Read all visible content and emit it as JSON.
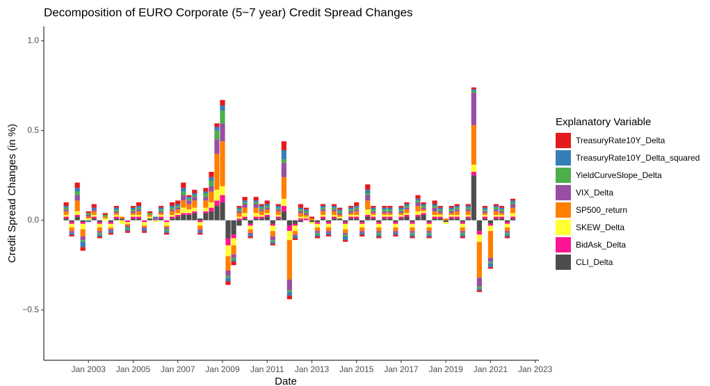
{
  "chart_data": {
    "type": "stacked_bar",
    "title": "Decomposition of EURO Corporate (5−7 year) Credit Spread Changes",
    "x_label": "Date",
    "y_label": "Credit Spread Changes (in %)",
    "legend_title": "Explanatory Variable",
    "legend": "right",
    "xlim": [
      "2001-01",
      "2023-03"
    ],
    "ylim": [
      -0.78,
      1.08
    ],
    "xticks": [
      {
        "value": "2003-01",
        "label": "Jan 2003"
      },
      {
        "value": "2005-01",
        "label": "Jan 2005"
      },
      {
        "value": "2007-01",
        "label": "Jan 2007"
      },
      {
        "value": "2009-01",
        "label": "Jan 2009"
      },
      {
        "value": "2011-01",
        "label": "Jan 2011"
      },
      {
        "value": "2013-01",
        "label": "Jan 2013"
      },
      {
        "value": "2015-01",
        "label": "Jan 2015"
      },
      {
        "value": "2017-01",
        "label": "Jan 2017"
      },
      {
        "value": "2019-01",
        "label": "Jan 2019"
      },
      {
        "value": "2021-01",
        "label": "Jan 2021"
      },
      {
        "value": "2023-01",
        "label": "Jan 2023"
      }
    ],
    "yticks": [
      {
        "value": -0.5,
        "label": "−0.5"
      },
      {
        "value": 0,
        "label": "0.0"
      },
      {
        "value": 0.5,
        "label": "0.5"
      },
      {
        "value": 1,
        "label": "1.0"
      }
    ],
    "x": [
      "2002-01",
      "2002-04",
      "2002-07",
      "2002-10",
      "2003-01",
      "2003-04",
      "2003-07",
      "2003-10",
      "2004-01",
      "2004-04",
      "2004-07",
      "2004-10",
      "2005-01",
      "2005-04",
      "2005-07",
      "2005-10",
      "2006-01",
      "2006-04",
      "2006-07",
      "2006-10",
      "2007-01",
      "2007-04",
      "2007-07",
      "2007-10",
      "2008-01",
      "2008-04",
      "2008-07",
      "2008-10",
      "2009-01",
      "2009-04",
      "2009-07",
      "2009-10",
      "2010-01",
      "2010-04",
      "2010-07",
      "2010-10",
      "2011-01",
      "2011-04",
      "2011-07",
      "2011-10",
      "2012-01",
      "2012-04",
      "2012-07",
      "2012-10",
      "2013-01",
      "2013-04",
      "2013-07",
      "2013-10",
      "2014-01",
      "2014-04",
      "2014-07",
      "2014-10",
      "2015-01",
      "2015-04",
      "2015-07",
      "2015-10",
      "2016-01",
      "2016-04",
      "2016-07",
      "2016-10",
      "2017-01",
      "2017-04",
      "2017-07",
      "2017-10",
      "2018-01",
      "2018-04",
      "2018-07",
      "2018-10",
      "2019-01",
      "2019-04",
      "2019-07",
      "2019-10",
      "2020-01",
      "2020-04",
      "2020-07",
      "2020-10",
      "2021-01",
      "2021-04",
      "2021-07",
      "2021-10",
      "2022-01"
    ],
    "series": [
      {
        "name": "TreasuryRate10Y_Delta",
        "color": "#E41A1C",
        "values": [
          0.02,
          -0.01,
          0.03,
          -0.02,
          0.01,
          0.02,
          -0.01,
          0.01,
          -0.01,
          0.01,
          0.0,
          -0.01,
          0.01,
          0.02,
          -0.01,
          0.01,
          0.0,
          0.01,
          -0.01,
          0.02,
          0.02,
          0.03,
          0.01,
          0.02,
          -0.01,
          0.02,
          0.03,
          0.02,
          0.03,
          -0.02,
          -0.02,
          0.01,
          0.02,
          -0.01,
          0.02,
          0.01,
          0.02,
          -0.01,
          0.01,
          0.05,
          -0.02,
          -0.01,
          0.02,
          0.01,
          0.01,
          -0.01,
          0.01,
          -0.01,
          0.01,
          0.01,
          -0.01,
          0.01,
          0.02,
          -0.01,
          0.03,
          0.01,
          -0.01,
          0.01,
          0.01,
          -0.01,
          0.01,
          0.01,
          -0.01,
          0.02,
          0.01,
          -0.01,
          0.02,
          0.01,
          0.0,
          0.01,
          0.01,
          -0.01,
          0.01,
          0.01,
          -0.01,
          0.01,
          -0.01,
          0.01,
          0.01,
          -0.01,
          0.01
        ]
      },
      {
        "name": "TreasuryRate10Y_Delta_squared",
        "color": "#377EB8",
        "values": [
          0.01,
          -0.01,
          0.02,
          -0.03,
          -0.01,
          0.01,
          -0.01,
          0.0,
          -0.01,
          0.01,
          0.0,
          -0.01,
          0.01,
          0.01,
          -0.01,
          0.0,
          0.01,
          0.01,
          -0.01,
          0.01,
          0.01,
          0.02,
          0.01,
          0.01,
          -0.01,
          0.01,
          0.02,
          0.02,
          0.03,
          -0.02,
          -0.01,
          0.01,
          0.01,
          -0.01,
          0.01,
          0.01,
          0.01,
          -0.01,
          0.01,
          0.05,
          -0.02,
          -0.01,
          0.01,
          0.01,
          0.0,
          -0.01,
          0.01,
          -0.01,
          0.01,
          0.01,
          -0.02,
          0.01,
          0.01,
          -0.01,
          0.02,
          0.01,
          -0.01,
          0.01,
          0.01,
          -0.01,
          0.01,
          0.01,
          -0.01,
          0.01,
          0.01,
          -0.01,
          0.01,
          0.01,
          0.0,
          0.01,
          0.01,
          -0.01,
          0.01,
          0.01,
          -0.01,
          0.01,
          -0.02,
          0.01,
          0.01,
          -0.01,
          0.01
        ]
      },
      {
        "name": "YieldCurveSlope_Delta",
        "color": "#4DAF4A",
        "values": [
          0.01,
          0.0,
          0.02,
          -0.01,
          0.01,
          0.0,
          -0.01,
          0.01,
          0.0,
          0.01,
          0.0,
          -0.01,
          0.01,
          0.01,
          0.0,
          0.01,
          0.0,
          0.01,
          -0.01,
          0.01,
          0.01,
          0.02,
          0.01,
          0.01,
          0.0,
          0.02,
          0.03,
          0.05,
          0.07,
          -0.01,
          -0.01,
          0.01,
          0.01,
          0.0,
          0.01,
          0.01,
          0.01,
          -0.01,
          0.01,
          0.02,
          -0.01,
          0.0,
          0.01,
          0.01,
          0.0,
          -0.01,
          0.01,
          0.0,
          0.01,
          0.01,
          -0.01,
          0.01,
          0.01,
          0.0,
          0.01,
          0.01,
          -0.01,
          0.01,
          0.01,
          0.0,
          0.01,
          0.01,
          -0.01,
          0.01,
          0.01,
          -0.01,
          0.01,
          0.01,
          0.0,
          0.01,
          0.01,
          -0.01,
          0.01,
          0.01,
          -0.01,
          0.01,
          -0.01,
          0.01,
          0.01,
          -0.01,
          0.01
        ]
      },
      {
        "name": "VIX_Delta",
        "color": "#984EA3",
        "values": [
          0.01,
          -0.01,
          0.03,
          -0.02,
          0.01,
          0.01,
          -0.01,
          0.0,
          -0.01,
          0.01,
          0.0,
          -0.01,
          0.01,
          0.01,
          -0.01,
          0.0,
          0.01,
          0.01,
          -0.01,
          0.01,
          0.01,
          0.03,
          0.02,
          0.02,
          -0.01,
          0.02,
          0.03,
          0.08,
          0.1,
          -0.03,
          -0.02,
          0.01,
          0.02,
          -0.01,
          0.02,
          0.01,
          0.01,
          -0.02,
          0.01,
          0.08,
          -0.06,
          -0.01,
          0.01,
          0.01,
          0.0,
          -0.01,
          0.01,
          -0.01,
          0.01,
          0.01,
          -0.01,
          0.01,
          0.01,
          -0.01,
          0.03,
          0.01,
          -0.01,
          0.01,
          0.01,
          -0.01,
          0.01,
          0.01,
          -0.01,
          0.02,
          0.01,
          -0.01,
          0.02,
          0.01,
          0.0,
          0.01,
          0.01,
          -0.01,
          0.01,
          0.18,
          -0.05,
          0.01,
          -0.02,
          0.01,
          0.01,
          -0.01,
          0.02
        ]
      },
      {
        "name": "SP500_return",
        "color": "#FF7F00",
        "values": [
          0.02,
          -0.02,
          0.06,
          -0.04,
          0.01,
          0.02,
          -0.02,
          0.01,
          -0.01,
          0.01,
          0.01,
          -0.01,
          0.01,
          0.02,
          -0.01,
          0.01,
          0.0,
          0.01,
          -0.01,
          0.02,
          0.02,
          0.04,
          0.03,
          0.04,
          -0.02,
          0.04,
          0.06,
          0.2,
          0.25,
          -0.08,
          -0.05,
          0.02,
          0.03,
          -0.02,
          0.03,
          0.02,
          0.02,
          -0.03,
          0.02,
          0.12,
          -0.22,
          -0.02,
          0.02,
          0.01,
          0.01,
          -0.02,
          0.02,
          -0.02,
          0.02,
          0.01,
          -0.02,
          0.01,
          0.02,
          -0.02,
          0.05,
          0.01,
          -0.02,
          0.01,
          0.01,
          -0.02,
          0.01,
          0.02,
          -0.02,
          0.03,
          0.01,
          -0.02,
          0.02,
          0.01,
          0.01,
          0.01,
          0.02,
          -0.02,
          0.02,
          0.22,
          -0.2,
          0.01,
          -0.15,
          0.02,
          0.01,
          -0.02,
          0.03
        ]
      },
      {
        "name": "SKEW_Delta",
        "color": "#FFFF33",
        "values": [
          0.01,
          -0.02,
          0.02,
          -0.03,
          0.01,
          0.01,
          -0.02,
          0.01,
          -0.02,
          0.01,
          -0.02,
          -0.01,
          0.01,
          0.01,
          -0.02,
          0.01,
          -0.01,
          0.01,
          -0.02,
          0.01,
          0.01,
          0.03,
          0.02,
          0.02,
          -0.02,
          0.02,
          0.03,
          0.06,
          0.05,
          -0.06,
          -0.04,
          0.01,
          0.02,
          -0.02,
          0.02,
          0.01,
          0.01,
          -0.03,
          0.01,
          0.04,
          -0.05,
          -0.03,
          0.01,
          0.01,
          -0.01,
          -0.02,
          0.01,
          -0.02,
          0.01,
          0.01,
          -0.03,
          0.01,
          0.01,
          -0.02,
          0.03,
          0.01,
          -0.02,
          0.01,
          0.01,
          -0.02,
          0.01,
          0.01,
          -0.02,
          0.02,
          0.01,
          -0.02,
          0.01,
          0.01,
          -0.01,
          0.01,
          0.01,
          -0.02,
          0.01,
          0.04,
          -0.04,
          0.01,
          -0.03,
          0.01,
          0.01,
          -0.02,
          0.02
        ]
      },
      {
        "name": "BidAsk_Delta",
        "color": "#FF1493",
        "values": [
          0.01,
          -0.01,
          0.01,
          -0.01,
          0.0,
          0.01,
          -0.01,
          0.0,
          -0.01,
          0.01,
          0.0,
          -0.01,
          0.01,
          0.01,
          -0.01,
          0.0,
          0.0,
          0.01,
          -0.01,
          0.01,
          0.01,
          0.01,
          0.01,
          0.01,
          -0.01,
          0.01,
          0.02,
          0.03,
          0.04,
          -0.04,
          -0.02,
          0.01,
          0.01,
          -0.01,
          0.01,
          0.01,
          0.01,
          -0.01,
          0.01,
          0.03,
          -0.03,
          -0.01,
          0.01,
          0.01,
          0.0,
          -0.01,
          0.01,
          -0.01,
          0.01,
          0.0,
          -0.01,
          0.01,
          0.01,
          -0.01,
          0.01,
          0.01,
          -0.01,
          0.01,
          0.01,
          -0.01,
          0.01,
          0.01,
          -0.01,
          0.01,
          0.01,
          -0.01,
          0.01,
          0.01,
          0.0,
          0.01,
          0.01,
          -0.01,
          0.01,
          0.02,
          -0.02,
          0.01,
          -0.01,
          0.01,
          0.01,
          -0.01,
          0.01
        ]
      },
      {
        "name": "CLI_Delta",
        "color": "#4D4D4D",
        "values": [
          0.01,
          -0.01,
          0.02,
          -0.01,
          0.0,
          0.01,
          -0.01,
          0.0,
          -0.01,
          0.01,
          0.01,
          0.0,
          0.01,
          0.01,
          0.0,
          0.01,
          0.0,
          0.01,
          0.0,
          0.01,
          0.02,
          0.03,
          0.03,
          0.04,
          0.01,
          0.04,
          0.05,
          0.08,
          0.1,
          -0.1,
          -0.08,
          -0.03,
          0.01,
          -0.02,
          0.01,
          0.01,
          0.02,
          -0.02,
          0.01,
          0.05,
          -0.03,
          -0.02,
          -0.01,
          0.0,
          -0.01,
          -0.01,
          0.01,
          -0.01,
          0.01,
          0.01,
          -0.01,
          0.01,
          0.01,
          -0.01,
          0.02,
          0.01,
          -0.01,
          0.01,
          0.01,
          -0.01,
          0.01,
          0.02,
          -0.01,
          0.02,
          0.03,
          -0.01,
          0.01,
          0.01,
          -0.01,
          0.01,
          0.01,
          -0.01,
          0.01,
          0.25,
          -0.06,
          0.01,
          -0.02,
          0.01,
          0.01,
          -0.01,
          0.01
        ]
      }
    ]
  }
}
